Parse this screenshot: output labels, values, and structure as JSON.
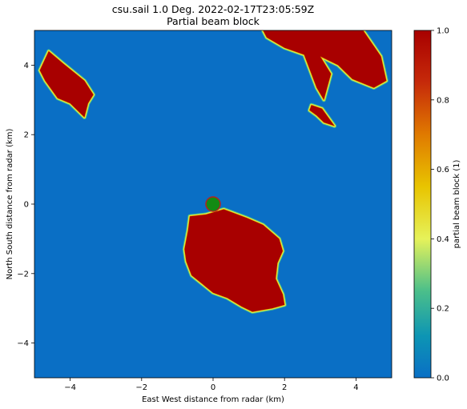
{
  "chart_data": {
    "type": "heatmap",
    "title": "csu.sail 1.0 Deg. 2022-02-17T23:05:59Z",
    "subtitle": "Partial beam block",
    "xlabel": "East West distance from radar (km)",
    "ylabel": "North South distance from radar (km)",
    "xlim": [
      -5,
      5
    ],
    "ylim": [
      -5,
      5
    ],
    "xticks": [
      -4,
      -2,
      0,
      2,
      4
    ],
    "yticks": [
      -4,
      -2,
      0,
      2,
      4
    ],
    "colorbar": {
      "label": "partial beam block (1)",
      "range": [
        0.0,
        1.0
      ],
      "ticks": [
        "0.0",
        "0.2",
        "0.4",
        "0.6",
        "0.8",
        "1.0"
      ],
      "colors": [
        "#0a6fc5",
        "#0d95b4",
        "#4bbf8a",
        "#e6f25a",
        "#e8c400",
        "#e07a00",
        "#c62a0a",
        "#a80000"
      ]
    },
    "background_value": 0.0,
    "blocked_regions": [
      {
        "name": "west-island",
        "value": 1.0,
        "outline": [
          [
            -4.6,
            4.4
          ],
          [
            -4.2,
            4.05
          ],
          [
            -3.6,
            3.55
          ],
          [
            -3.35,
            3.15
          ],
          [
            -3.5,
            2.9
          ],
          [
            -3.6,
            2.5
          ],
          [
            -4.0,
            2.9
          ],
          [
            -4.35,
            3.05
          ],
          [
            -4.7,
            3.55
          ],
          [
            -4.85,
            3.85
          ]
        ]
      },
      {
        "name": "south-island",
        "value": 1.0,
        "outline": [
          [
            -0.65,
            -0.35
          ],
          [
            -0.2,
            -0.3
          ],
          [
            0.3,
            -0.15
          ],
          [
            0.95,
            -0.4
          ],
          [
            1.4,
            -0.6
          ],
          [
            1.85,
            -1.0
          ],
          [
            1.95,
            -1.35
          ],
          [
            1.8,
            -1.7
          ],
          [
            1.75,
            -2.15
          ],
          [
            1.95,
            -2.6
          ],
          [
            2.0,
            -2.9
          ],
          [
            1.65,
            -3.0
          ],
          [
            1.1,
            -3.1
          ],
          [
            0.8,
            -2.95
          ],
          [
            0.4,
            -2.7
          ],
          [
            0.0,
            -2.55
          ],
          [
            -0.3,
            -2.3
          ],
          [
            -0.6,
            -2.05
          ],
          [
            -0.75,
            -1.65
          ],
          [
            -0.8,
            -1.3
          ],
          [
            -0.7,
            -0.75
          ]
        ]
      },
      {
        "name": "northeast-ridge",
        "value": 1.0,
        "outline": [
          [
            1.4,
            5.0
          ],
          [
            4.2,
            5.0
          ],
          [
            4.7,
            4.25
          ],
          [
            4.85,
            3.55
          ],
          [
            4.5,
            3.35
          ],
          [
            3.9,
            3.6
          ],
          [
            3.5,
            4.0
          ],
          [
            3.0,
            4.25
          ],
          [
            3.3,
            3.75
          ],
          [
            3.1,
            3.0
          ],
          [
            2.9,
            3.35
          ],
          [
            2.55,
            4.3
          ],
          [
            2.0,
            4.5
          ],
          [
            1.5,
            4.8
          ]
        ]
      },
      {
        "name": "northeast-finger",
        "value": 1.0,
        "outline": [
          [
            2.75,
            2.85
          ],
          [
            3.05,
            2.75
          ],
          [
            3.4,
            2.25
          ],
          [
            3.1,
            2.35
          ],
          [
            2.9,
            2.55
          ],
          [
            2.7,
            2.7
          ]
        ]
      }
    ],
    "radar_marker": {
      "x": 0.0,
      "y": 0.0,
      "color": "#138a13"
    }
  }
}
